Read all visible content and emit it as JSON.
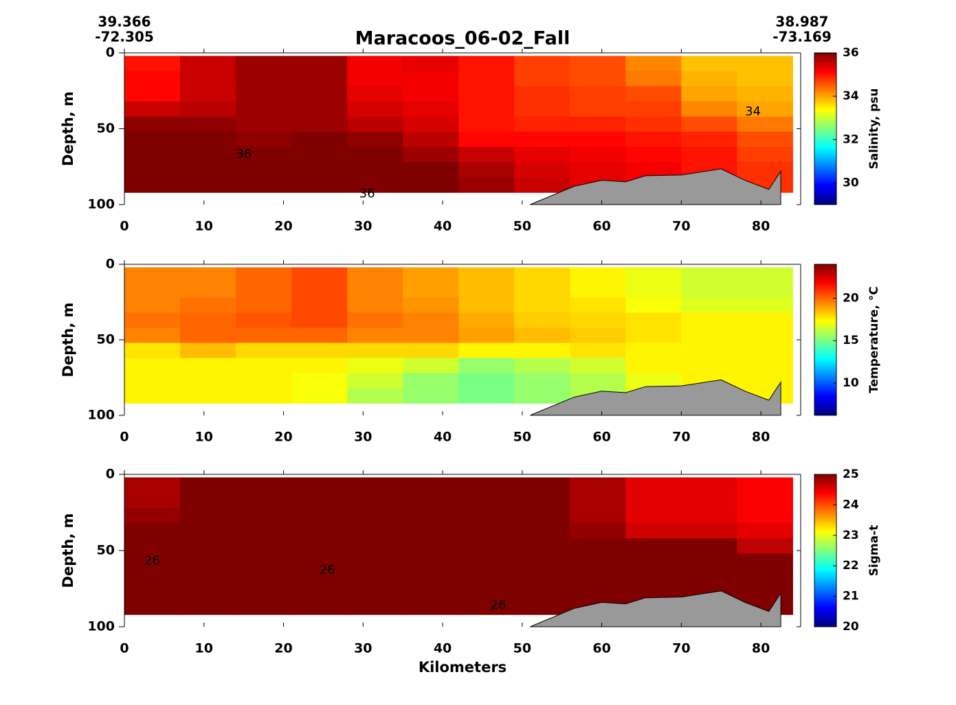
{
  "chart_data": [
    {
      "type": "section",
      "title": "Maracoos_06-02_Fall",
      "start_lat": 39.366,
      "start_lon": -72.305,
      "end_lat": 38.987,
      "end_lon": -73.169,
      "ylabel": "Depth, m",
      "clabel": "Salinity, psu",
      "xlim": [
        0,
        85
      ],
      "xticks": [
        0,
        10,
        20,
        30,
        40,
        50,
        60,
        70,
        80
      ],
      "ylim": [
        0,
        100
      ],
      "yticks": [
        0,
        50,
        100
      ],
      "y_inverted": true,
      "clim": [
        29,
        36
      ],
      "cticks": [
        30,
        32,
        34,
        36
      ],
      "colormap": "jet",
      "x": [
        0,
        7,
        14,
        21,
        28,
        35,
        42,
        49,
        56,
        63,
        70,
        77,
        84
      ],
      "depth": [
        2,
        12,
        22,
        32,
        42,
        52,
        62,
        72,
        82,
        92
      ],
      "values": [
        [
          35.0,
          35.5,
          35.8,
          35.8,
          35.2,
          35.3,
          35.0,
          34.7,
          34.6,
          34.2,
          33.8,
          33.8
        ],
        [
          35.1,
          35.5,
          35.8,
          35.8,
          35.2,
          35.2,
          35.0,
          34.7,
          34.6,
          34.3,
          33.9,
          33.8
        ],
        [
          35.1,
          35.5,
          35.8,
          35.8,
          35.3,
          35.2,
          35.0,
          34.8,
          34.7,
          34.6,
          34.0,
          33.9
        ],
        [
          35.5,
          35.6,
          35.8,
          35.8,
          35.4,
          35.3,
          35.0,
          34.8,
          34.7,
          34.7,
          34.2,
          34.0
        ],
        [
          35.9,
          35.9,
          35.8,
          35.8,
          35.6,
          35.4,
          35.0,
          34.9,
          34.9,
          34.8,
          34.6,
          34.3
        ],
        [
          36.2,
          36.0,
          35.9,
          36.0,
          35.9,
          35.6,
          35.1,
          35.1,
          35.1,
          35.0,
          34.9,
          34.6
        ],
        [
          36.3,
          36.3,
          36.3,
          36.3,
          36.2,
          35.8,
          35.5,
          35.3,
          35.2,
          35.1,
          35.0,
          34.7
        ],
        [
          36.3,
          36.3,
          36.3,
          36.3,
          36.3,
          36.1,
          35.7,
          35.4,
          35.3,
          35.2,
          35.0,
          34.8
        ],
        [
          36.3,
          36.3,
          36.3,
          36.3,
          36.2,
          36.1,
          35.8,
          35.5,
          35.3,
          35.2,
          35.0,
          34.8
        ]
      ],
      "bottom": {
        "color": "#999999",
        "x": [
          51,
          56.5,
          60,
          63,
          65.5,
          70,
          75,
          78,
          81,
          82.5,
          82.5
        ],
        "depth": [
          100,
          88,
          84,
          85,
          81,
          80.5,
          76.5,
          84,
          90,
          78,
          100
        ]
      },
      "contour_labels": [
        {
          "text": "34",
          "x": 79,
          "y": 39
        },
        {
          "text": "36",
          "x": 15,
          "y": 67
        },
        {
          "text": "36",
          "x": 30.5,
          "y": 93
        }
      ]
    },
    {
      "type": "section",
      "ylabel": "Depth, m",
      "clabel": "Temperature, °C",
      "xlim": [
        0,
        85
      ],
      "xticks": [
        0,
        10,
        20,
        30,
        40,
        50,
        60,
        70,
        80
      ],
      "ylim": [
        0,
        100
      ],
      "yticks": [
        0,
        50,
        100
      ],
      "y_inverted": true,
      "clim": [
        6.2,
        24
      ],
      "cticks": [
        10,
        15,
        20
      ],
      "colormap": "jet",
      "x": [
        0,
        7,
        14,
        21,
        28,
        35,
        42,
        49,
        56,
        63,
        70,
        77,
        84
      ],
      "depth": [
        2,
        12,
        22,
        32,
        42,
        52,
        62,
        72,
        82,
        92
      ],
      "values": [
        [
          19.5,
          19.5,
          20.0,
          20.5,
          19.5,
          19.0,
          18.5,
          18.0,
          17.5,
          17.0,
          16.5,
          16.5
        ],
        [
          19.5,
          19.5,
          20.0,
          20.5,
          19.5,
          19.0,
          18.5,
          18.0,
          17.5,
          17.0,
          16.5,
          16.5
        ],
        [
          19.5,
          19.8,
          20.0,
          20.5,
          19.5,
          19.2,
          18.5,
          18.0,
          17.8,
          17.2,
          16.8,
          16.8
        ],
        [
          19.8,
          20.0,
          20.3,
          20.5,
          19.8,
          19.5,
          18.8,
          18.2,
          18.0,
          17.8,
          17.5,
          17.5
        ],
        [
          19.5,
          20.0,
          20.0,
          20.0,
          19.5,
          19.5,
          19.0,
          18.5,
          18.2,
          17.8,
          17.5,
          17.5
        ],
        [
          17.8,
          18.5,
          18.0,
          18.0,
          18.0,
          18.0,
          17.5,
          17.5,
          17.8,
          17.5,
          17.5,
          17.5
        ],
        [
          17.5,
          17.5,
          17.5,
          17.5,
          17.0,
          16.5,
          15.5,
          16.0,
          16.5,
          17.5,
          17.5,
          17.5
        ],
        [
          17.5,
          17.5,
          17.5,
          17.2,
          16.5,
          15.5,
          15.0,
          15.5,
          16.0,
          17.0,
          17.5,
          17.5
        ],
        [
          17.5,
          17.5,
          17.5,
          17.2,
          16.0,
          15.5,
          15.0,
          15.5,
          16.0,
          17.0,
          17.5,
          17.5
        ]
      ],
      "bottom": {
        "color": "#999999",
        "x": [
          51,
          56.5,
          60,
          63,
          65.5,
          70,
          75,
          78,
          81,
          82.5,
          82.5
        ],
        "depth": [
          100,
          88,
          84,
          85,
          81,
          80.5,
          76.5,
          84,
          90,
          78,
          100
        ]
      }
    },
    {
      "type": "section",
      "ylabel": "Depth, m",
      "clabel": "Sigma-t",
      "xlabel": "Kilometers",
      "xlim": [
        0,
        85
      ],
      "xticks": [
        0,
        10,
        20,
        30,
        40,
        50,
        60,
        70,
        80
      ],
      "ylim": [
        0,
        100
      ],
      "yticks": [
        0,
        50,
        100
      ],
      "y_inverted": true,
      "clim": [
        20,
        25
      ],
      "cticks": [
        20,
        21,
        22,
        23,
        24,
        25
      ],
      "colormap": "jet",
      "x": [
        0,
        7,
        14,
        21,
        28,
        35,
        42,
        49,
        56,
        63,
        70,
        77,
        84
      ],
      "depth": [
        2,
        12,
        22,
        32,
        42,
        52,
        62,
        72,
        82,
        92
      ],
      "values": [
        [
          24.8,
          25.2,
          25.4,
          25.4,
          25.2,
          25.0,
          25.0,
          25.0,
          24.8,
          24.5,
          24.5,
          24.4
        ],
        [
          24.8,
          25.2,
          25.4,
          25.4,
          25.2,
          25.0,
          25.0,
          25.0,
          24.8,
          24.5,
          24.5,
          24.4
        ],
        [
          24.9,
          25.2,
          25.4,
          25.4,
          25.2,
          25.0,
          25.0,
          25.0,
          24.8,
          24.5,
          24.5,
          24.4
        ],
        [
          25.0,
          25.3,
          25.4,
          25.4,
          25.2,
          25.1,
          25.0,
          25.0,
          24.9,
          24.6,
          24.6,
          24.5
        ],
        [
          25.6,
          25.5,
          25.5,
          25.5,
          25.4,
          25.2,
          25.2,
          25.1,
          25.1,
          25.4,
          25.0,
          24.7
        ],
        [
          26.0,
          25.8,
          25.9,
          25.8,
          25.9,
          25.6,
          25.5,
          25.5,
          25.4,
          25.6,
          25.4,
          25.0
        ],
        [
          26.1,
          26.1,
          26.0,
          26.0,
          26.0,
          25.9,
          25.8,
          25.6,
          25.5,
          25.7,
          25.6,
          25.2
        ],
        [
          26.1,
          26.2,
          26.2,
          26.2,
          26.2,
          26.1,
          26.0,
          25.8,
          25.7,
          25.8,
          25.7,
          25.2
        ],
        [
          26.1,
          26.2,
          26.2,
          26.2,
          26.2,
          26.1,
          26.0,
          25.8,
          25.7,
          25.8,
          25.7,
          25.2
        ]
      ],
      "bottom": {
        "color": "#999999",
        "x": [
          51,
          56.5,
          60,
          63,
          65.5,
          70,
          75,
          78,
          81,
          82.5,
          82.5
        ],
        "depth": [
          100,
          88,
          84,
          85,
          81,
          80.5,
          76.5,
          84,
          90,
          78,
          100
        ]
      },
      "contour_labels": [
        {
          "text": "26",
          "x": 3.5,
          "y": 57
        },
        {
          "text": "26",
          "x": 25.5,
          "y": 63
        },
        {
          "text": "26",
          "x": 47,
          "y": 86
        }
      ]
    }
  ]
}
